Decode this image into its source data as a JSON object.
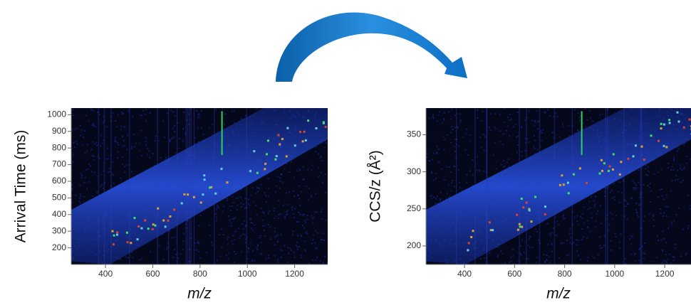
{
  "chart_data": [
    {
      "type": "heatmap",
      "xlabel": "m/z",
      "ylabel": "Arrival Time (ms)",
      "xlim": [
        255,
        1340
      ],
      "xticks": [
        400,
        600,
        800,
        1000,
        1200
      ],
      "ylim": [
        100,
        1040
      ],
      "yticks": [
        200,
        300,
        400,
        500,
        600,
        700,
        800,
        900,
        1000
      ]
    },
    {
      "type": "heatmap",
      "xlabel": "m/z",
      "ylabel": "CCS/z (Å²)",
      "xlim": [
        246,
        1305
      ],
      "xticks": [
        400,
        600,
        800,
        1000,
        1200
      ],
      "ylim": [
        175,
        386
      ],
      "yticks": [
        200,
        250,
        300,
        350
      ]
    }
  ]
}
